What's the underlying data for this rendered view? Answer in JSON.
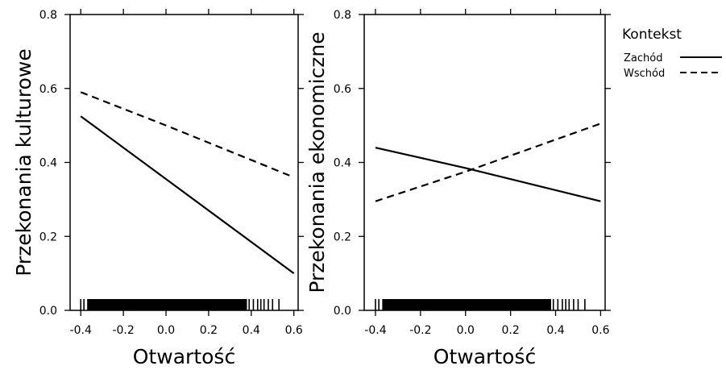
{
  "legend": {
    "title": "Kontekst",
    "entries": [
      {
        "label": "Zachód",
        "dash": "solid"
      },
      {
        "label": "Wschód",
        "dash": "dashed"
      }
    ]
  },
  "chart_data": [
    {
      "type": "line",
      "title": "",
      "xlabel": "Otwartość",
      "ylabel": "Przekonania kulturowe",
      "xlim": [
        -0.45,
        0.62
      ],
      "ylim": [
        0.0,
        0.8
      ],
      "x_ticks": [
        -0.4,
        -0.2,
        0.0,
        0.2,
        0.4,
        0.6
      ],
      "x_tick_labels": [
        "-0.4",
        "-0.2",
        "0.0",
        "0.2",
        "0.4",
        "0.6"
      ],
      "y_ticks": [
        0.0,
        0.2,
        0.4,
        0.6,
        0.8
      ],
      "y_tick_labels": [
        "0.0",
        "0.2",
        "0.4",
        "0.6",
        "0.8"
      ],
      "series": [
        {
          "name": "Zachód",
          "dash": "solid",
          "x": [
            -0.4,
            0.0,
            0.6
          ],
          "y": [
            0.525,
            0.355,
            0.1
          ]
        },
        {
          "name": "Wschód",
          "dash": "dashed",
          "x": [
            -0.4,
            0.0,
            0.6
          ],
          "y": [
            0.59,
            0.5,
            0.36
          ]
        }
      ],
      "rug": {
        "start": -0.37,
        "end": 0.38,
        "sparse": [
          -0.4,
          -0.385,
          0.39,
          0.41,
          0.43,
          0.445,
          0.46,
          0.48,
          0.5,
          0.53
        ]
      }
    },
    {
      "type": "line",
      "title": "",
      "xlabel": "Otwartość",
      "ylabel": "Przekonania ekonomiczne",
      "xlim": [
        -0.45,
        0.62
      ],
      "ylim": [
        0.0,
        0.8
      ],
      "x_ticks": [
        -0.4,
        -0.2,
        0.0,
        0.2,
        0.4,
        0.6
      ],
      "x_tick_labels": [
        "-0.4",
        "-0.2",
        "0.0",
        "0.2",
        "0.4",
        "0.6"
      ],
      "y_ticks": [
        0.0,
        0.2,
        0.4,
        0.6,
        0.8
      ],
      "y_tick_labels": [
        "0.0",
        "0.2",
        "0.4",
        "0.6",
        "0.8"
      ],
      "series": [
        {
          "name": "Zachód",
          "dash": "solid",
          "x": [
            -0.4,
            0.0,
            0.6
          ],
          "y": [
            0.44,
            0.385,
            0.295
          ]
        },
        {
          "name": "Wschód",
          "dash": "dashed",
          "x": [
            -0.4,
            0.0,
            0.6
          ],
          "y": [
            0.295,
            0.375,
            0.505
          ]
        }
      ],
      "rug": {
        "start": -0.37,
        "end": 0.38,
        "sparse": [
          -0.4,
          -0.385,
          0.39,
          0.41,
          0.43,
          0.445,
          0.46,
          0.48,
          0.5,
          0.53
        ]
      }
    }
  ]
}
